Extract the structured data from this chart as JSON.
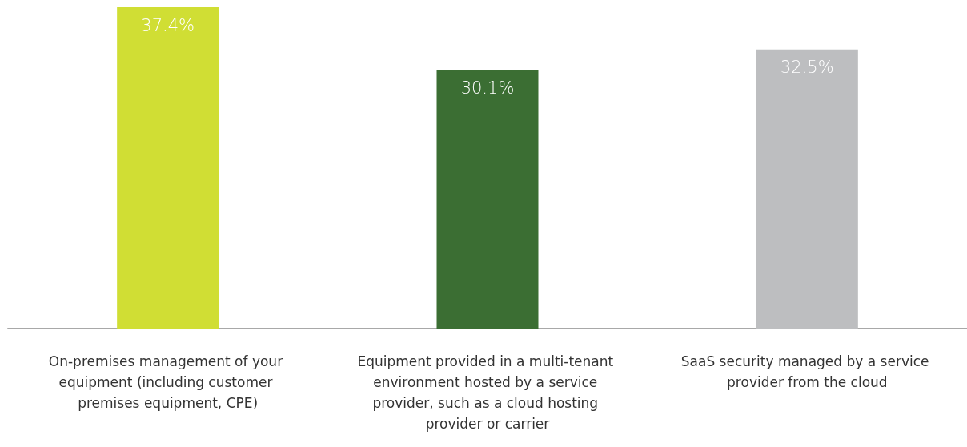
{
  "chart_data": {
    "type": "bar",
    "categories": [
      "On-premises management of your equipment (including customer premises equipment, CPE)",
      "Equipment provided in a multi-tenant environment hosted by a service provider, such as a cloud hosting provider or carrier",
      "SaaS security managed by a service provider from the cloud"
    ],
    "values": [
      37.4,
      30.1,
      32.5
    ],
    "colors": [
      "#d0de34",
      "#3b6e33",
      "#bdbec0"
    ],
    "value_labels": [
      "37.4%",
      "30.1%",
      "32.5%"
    ]
  }
}
